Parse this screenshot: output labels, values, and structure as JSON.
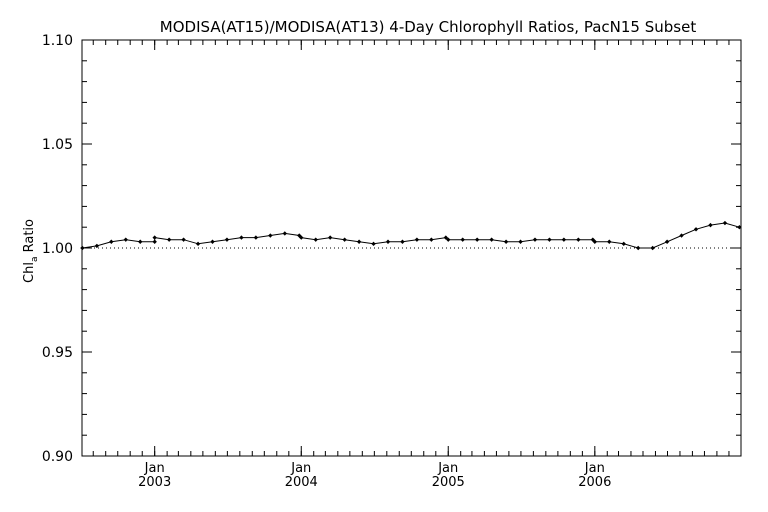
{
  "chart_data": {
    "type": "line",
    "title": "MODISA(AT15)/MODISA(AT13) 4-Day Chlorophyll Ratios, PacN15 Subset",
    "ylabel": "Chl",
    "ylabel_subscript": "a",
    "ylabel_suffix": "Ratio",
    "xlabel": "",
    "xlim": [
      "2002-07-04",
      "2006-12-31"
    ],
    "ylim": [
      0.9,
      1.1
    ],
    "yticks": [
      0.9,
      0.95,
      1.0,
      1.05,
      1.1
    ],
    "ytick_labels": [
      "0.90",
      "0.95",
      "1.00",
      "1.05",
      "1.10"
    ],
    "xticks": [
      {
        "date": "2003-01-01",
        "month": "Jan",
        "year": "2003"
      },
      {
        "date": "2004-01-01",
        "month": "Jan",
        "year": "2004"
      },
      {
        "date": "2005-01-01",
        "month": "Jan",
        "year": "2005"
      },
      {
        "date": "2006-01-01",
        "month": "Jan",
        "year": "2006"
      }
    ],
    "reference_line": 1.0,
    "series": [
      {
        "marker": "diamond",
        "x": [
          "2002-07-05",
          "2002-08-10",
          "2002-09-15",
          "2002-10-21",
          "2002-11-26",
          "2003-01-01",
          "2003-01-01",
          "2003-02-06",
          "2003-03-14",
          "2003-04-19",
          "2003-05-25",
          "2003-06-30",
          "2003-08-05",
          "2003-09-10",
          "2003-10-16",
          "2003-11-21",
          "2003-12-27",
          "2004-01-01",
          "2004-02-06",
          "2004-03-13",
          "2004-04-18",
          "2004-05-24",
          "2004-06-29",
          "2004-08-04",
          "2004-09-09",
          "2004-10-15",
          "2004-11-20",
          "2004-12-26",
          "2005-01-01",
          "2005-02-06",
          "2005-03-14",
          "2005-04-19",
          "2005-05-25",
          "2005-06-30",
          "2005-08-05",
          "2005-09-10",
          "2005-10-16",
          "2005-11-21",
          "2005-12-27",
          "2006-01-01",
          "2006-02-06",
          "2006-03-14",
          "2006-04-19",
          "2006-05-25",
          "2006-06-30",
          "2006-08-05",
          "2006-09-10",
          "2006-10-16",
          "2006-11-21",
          "2006-12-27"
        ],
        "y": [
          1.0,
          1.001,
          1.003,
          1.004,
          1.003,
          1.003,
          1.005,
          1.004,
          1.004,
          1.002,
          1.003,
          1.004,
          1.005,
          1.005,
          1.006,
          1.007,
          1.006,
          1.005,
          1.004,
          1.005,
          1.004,
          1.003,
          1.002,
          1.003,
          1.003,
          1.004,
          1.004,
          1.005,
          1.004,
          1.004,
          1.004,
          1.004,
          1.003,
          1.003,
          1.004,
          1.004,
          1.004,
          1.004,
          1.004,
          1.003,
          1.003,
          1.002,
          1.0,
          1.0,
          1.003,
          1.006,
          1.009,
          1.011,
          1.012,
          1.01
        ]
      }
    ],
    "grid": false,
    "legend": "none"
  }
}
